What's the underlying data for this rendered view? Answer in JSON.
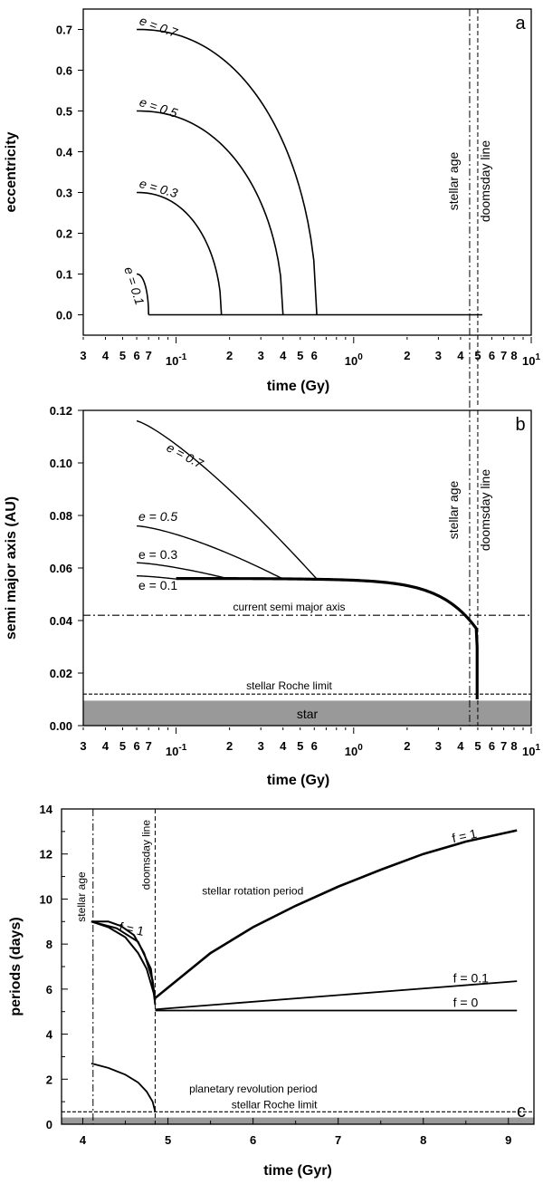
{
  "chart_data": [
    {
      "panel": "a",
      "type": "line",
      "xlabel": "time (Gy)",
      "ylabel": "eccentricity",
      "x_scale": "log",
      "xlim": [
        0.03,
        10
      ],
      "ylim": [
        -0.05,
        0.75
      ],
      "yticks": [
        "0.0",
        "0.1",
        "0.2",
        "0.3",
        "0.4",
        "0.5",
        "0.6",
        "0.7"
      ],
      "x_minor_tick_labels": [
        {
          "value": 0.03,
          "label": "3"
        },
        {
          "value": 0.04,
          "label": "4"
        },
        {
          "value": 0.05,
          "label": "5"
        },
        {
          "value": 0.06,
          "label": "6"
        },
        {
          "value": 0.07,
          "label": "7"
        },
        {
          "value": 0.2,
          "label": "2"
        },
        {
          "value": 0.3,
          "label": "3"
        },
        {
          "value": 0.4,
          "label": "4"
        },
        {
          "value": 0.5,
          "label": "5"
        },
        {
          "value": 0.6,
          "label": "6"
        },
        {
          "value": 2,
          "label": "2"
        },
        {
          "value": 3,
          "label": "3"
        },
        {
          "value": 4,
          "label": "4"
        },
        {
          "value": 5,
          "label": "5"
        },
        {
          "value": 6,
          "label": "6"
        },
        {
          "value": 7,
          "label": "7"
        },
        {
          "value": 8,
          "label": "8"
        }
      ],
      "x_decade_labels": [
        {
          "value": 0.1,
          "mantissa": "10",
          "exp": "-1"
        },
        {
          "value": 1,
          "mantissa": "10",
          "exp": "0"
        },
        {
          "value": 10,
          "mantissa": "10",
          "exp": "1"
        }
      ],
      "series": [
        {
          "name": "e = 0.1",
          "e0": 0.1,
          "x_start": 0.06,
          "x_end": 0.07
        },
        {
          "name": "e = 0.3",
          "e0": 0.3,
          "x_start": 0.06,
          "x_end": 0.18
        },
        {
          "name": "e = 0.5",
          "e0": 0.5,
          "x_start": 0.06,
          "x_end": 0.4
        },
        {
          "name": "e = 0.7",
          "e0": 0.7,
          "x_start": 0.06,
          "x_end": 0.62
        }
      ],
      "baseline": {
        "y": 0,
        "x_start": 0.07,
        "x_end": 5.3
      },
      "vlines": [
        {
          "label": "stellar age",
          "x": 4.5,
          "style": "dashdot"
        },
        {
          "label": "doomsday line",
          "x": 5.0,
          "style": "dashed"
        }
      ],
      "panel_label": "a"
    },
    {
      "panel": "b",
      "type": "line",
      "xlabel": "time (Gy)",
      "ylabel": "semi major axis (AU)",
      "x_scale": "log",
      "xlim": [
        0.03,
        10
      ],
      "ylim": [
        0,
        0.12
      ],
      "yticks": [
        "0.00",
        "0.02",
        "0.04",
        "0.06",
        "0.08",
        "0.10",
        "0.12"
      ],
      "x_minor_tick_labels": [
        {
          "value": 0.03,
          "label": "3"
        },
        {
          "value": 0.04,
          "label": "4"
        },
        {
          "value": 0.05,
          "label": "5"
        },
        {
          "value": 0.06,
          "label": "6"
        },
        {
          "value": 0.07,
          "label": "7"
        },
        {
          "value": 0.2,
          "label": "2"
        },
        {
          "value": 0.3,
          "label": "3"
        },
        {
          "value": 0.4,
          "label": "4"
        },
        {
          "value": 0.5,
          "label": "5"
        },
        {
          "value": 0.6,
          "label": "6"
        },
        {
          "value": 2,
          "label": "2"
        },
        {
          "value": 3,
          "label": "3"
        },
        {
          "value": 4,
          "label": "4"
        },
        {
          "value": 5,
          "label": "5"
        },
        {
          "value": 6,
          "label": "6"
        },
        {
          "value": 7,
          "label": "7"
        },
        {
          "value": 8,
          "label": "8"
        }
      ],
      "x_decade_labels": [
        {
          "value": 0.1,
          "mantissa": "10",
          "exp": "-1"
        },
        {
          "value": 1,
          "mantissa": "10",
          "exp": "0"
        },
        {
          "value": 10,
          "mantissa": "10",
          "exp": "1"
        }
      ],
      "series": [
        {
          "name": "e = 0.7",
          "a0": 0.116,
          "x_start": 0.06,
          "x_join": 0.62
        },
        {
          "name": "e = 0.5",
          "a0": 0.076,
          "x_start": 0.06,
          "x_join": 0.4
        },
        {
          "name": "e = 0.3",
          "a0": 0.062,
          "x_start": 0.06,
          "x_join": 0.2
        },
        {
          "name": "e = 0.1",
          "a0": 0.057,
          "x_start": 0.06,
          "x_join": 0.1
        }
      ],
      "common_track": {
        "a_start": 0.056,
        "x_start": 0.1,
        "x_end": 4.9,
        "a_end": 0.01
      },
      "hlines": [
        {
          "label": "current semi major axis",
          "y": 0.042,
          "style": "dashdot"
        },
        {
          "label": "stellar Roche limit",
          "y": 0.012,
          "style": "dashed"
        }
      ],
      "star_band": {
        "label": "star",
        "y_top": 0.0095
      },
      "vlines": [
        {
          "label": "stellar age",
          "x": 4.5,
          "style": "dashdot"
        },
        {
          "label": "doomsday line",
          "x": 5.0,
          "style": "dashed"
        }
      ],
      "panel_label": "b"
    },
    {
      "panel": "c",
      "type": "line",
      "xlabel": "time (Gyr)",
      "ylabel": "periods (days)",
      "xlim": [
        3.75,
        9.3
      ],
      "ylim": [
        0,
        14
      ],
      "xticks": [
        "4",
        "5",
        "6",
        "7",
        "8",
        "9"
      ],
      "yticks": [
        "0",
        "2",
        "4",
        "6",
        "8",
        "10",
        "12",
        "14"
      ],
      "series": [
        {
          "name": "f = 1",
          "x": [
            4.1,
            4.3,
            4.5,
            4.65,
            4.75,
            4.85
          ],
          "y": [
            9.0,
            8.75,
            8.3,
            7.6,
            6.9,
            5.6
          ]
        },
        {
          "name": "f = 1 (inner)",
          "x": [
            4.1,
            4.3,
            4.45,
            4.6,
            4.72,
            4.82,
            4.85
          ],
          "y": [
            9.0,
            9.0,
            8.8,
            8.4,
            7.6,
            6.4,
            5.5
          ]
        },
        {
          "name": "",
          "x": [
            4.1,
            4.4,
            4.65,
            4.8,
            4.85
          ],
          "y": [
            9.0,
            8.7,
            8.1,
            6.9,
            5.3
          ]
        },
        {
          "name": "f = 1",
          "x": [
            4.85,
            5.5,
            6,
            6.5,
            7,
            7.5,
            8,
            8.5,
            9.1
          ],
          "y": [
            5.6,
            7.6,
            8.75,
            9.7,
            10.55,
            11.3,
            12.0,
            12.55,
            13.05
          ]
        },
        {
          "name": "f = 0.1",
          "x": [
            4.85,
            9.1
          ],
          "y": [
            5.1,
            6.35
          ]
        },
        {
          "name": "f = 0",
          "x": [
            4.85,
            9.1
          ],
          "y": [
            5.05,
            5.05
          ]
        },
        {
          "name": "planetary revolution period",
          "x": [
            4.1,
            4.3,
            4.5,
            4.65,
            4.75,
            4.82,
            4.85
          ],
          "y": [
            2.7,
            2.5,
            2.2,
            1.85,
            1.45,
            1.0,
            0.55
          ]
        }
      ],
      "hlines": [
        {
          "label": "stellar Roche limit",
          "y": 0.55,
          "style": "dashed"
        }
      ],
      "star_band": {
        "y_top": 0.3
      },
      "vlines": [
        {
          "label": "stellar age",
          "x": 4.12,
          "style": "dashdot"
        },
        {
          "label": "doomsday line",
          "x": 4.85,
          "style": "dashed"
        }
      ],
      "annotations": [
        "stellar rotation period",
        "planetary revolution period"
      ],
      "panel_label": "c"
    }
  ]
}
